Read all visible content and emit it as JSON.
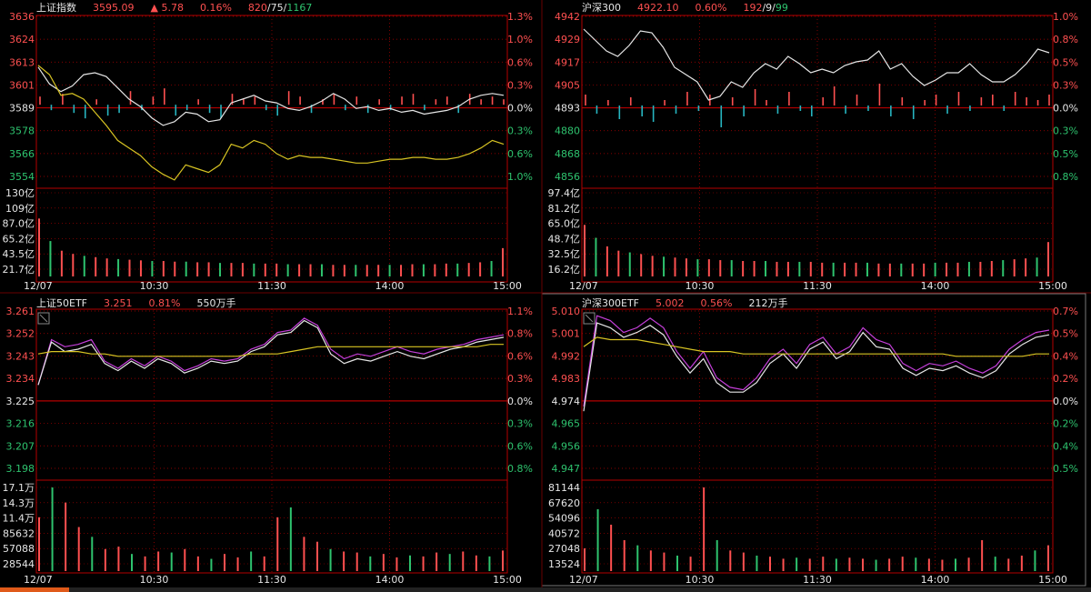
{
  "colors": {
    "up": "#ff5050",
    "down": "#2ec36e",
    "cyan": "#27b5c0",
    "white": "#e6e6e6",
    "yellow": "#d8c423",
    "purple": "#c43fd9",
    "grid": "#b40000",
    "label": "#bbbbbb"
  },
  "time_labels": [
    "12/07",
    "10:30",
    "11:30",
    "14:00",
    "15:00"
  ],
  "panels": [
    {
      "id": "sh-index",
      "header": [
        {
          "text": "上证指数",
          "color": "#e6e6e6"
        },
        {
          "text": "3595.09",
          "color": "#ff5050"
        },
        {
          "text": "▲ 5.78",
          "color": "#ff5050"
        },
        {
          "text": "0.16%",
          "color": "#ff5050"
        },
        {
          "text": "820",
          "color": "#ff5050"
        },
        {
          "text": "/75/",
          "color": "#e6e6e6"
        },
        {
          "text": "1167",
          "color": "#2ec36e"
        }
      ],
      "chart_data": {
        "type": "line",
        "base": 3589,
        "ylim": [
          3547,
          3636
        ],
        "price_ticks": [
          "3636",
          "3624",
          "3613",
          "3601",
          "3589",
          "3578",
          "3566",
          "3554"
        ],
        "pct_ticks": [
          "1.3%",
          "1.0%",
          "0.6%",
          "0.3%",
          "0.0%",
          "0.3%",
          "0.6%",
          "1.0%"
        ],
        "volume_ticks": [
          "130亿",
          "109亿",
          "87.0亿",
          "65.2亿",
          "43.5亿",
          "21.7亿"
        ],
        "volume_ylim": [
          0,
          130
        ],
        "series": [
          {
            "color": "#e6e6e6",
            "values": [
              3609,
              3600,
              3596,
              3599,
              3605,
              3606,
              3604,
              3598,
              3592,
              3588,
              3582,
              3578,
              3580,
              3585,
              3584,
              3580,
              3581,
              3590,
              3592,
              3594,
              3591,
              3590,
              3587,
              3586,
              3588,
              3591,
              3595,
              3592,
              3587,
              3588,
              3586,
              3587,
              3585,
              3586,
              3584,
              3585,
              3586,
              3588,
              3592,
              3594,
              3595,
              3594
            ]
          },
          {
            "color": "#d8c423",
            "values": [
              3610,
              3605,
              3594,
              3595,
              3592,
              3585,
              3578,
              3570,
              3566,
              3562,
              3556,
              3552,
              3549,
              3557,
              3555,
              3553,
              3557,
              3568,
              3566,
              3570,
              3568,
              3563,
              3560,
              3562,
              3561,
              3561,
              3560,
              3559,
              3558,
              3558,
              3559,
              3560,
              3560,
              3561,
              3561,
              3560,
              3560,
              3561,
              3563,
              3566,
              3570,
              3568
            ]
          }
        ],
        "ratio_bars": [
          3,
          -2,
          4,
          -3,
          -5,
          2,
          -4,
          -3,
          5,
          -2,
          3,
          6,
          -4,
          -2,
          2,
          -3,
          -5,
          4,
          2,
          3,
          -2,
          -4,
          5,
          3,
          -3,
          2,
          4,
          -2,
          3,
          -3,
          2,
          -2,
          3,
          4,
          -2,
          2,
          3,
          -3,
          4,
          2,
          3,
          2
        ],
        "volumes": [
          90,
          55,
          40,
          35,
          32,
          30,
          28,
          27,
          26,
          25,
          24,
          24,
          23,
          23,
          22,
          22,
          21,
          21,
          21,
          20,
          20,
          20,
          19,
          19,
          19,
          19,
          18,
          18,
          18,
          18,
          18,
          18,
          18,
          19,
          19,
          19,
          20,
          20,
          21,
          22,
          24,
          44
        ]
      }
    },
    {
      "id": "hs300",
      "header": [
        {
          "text": "沪深300",
          "color": "#e6e6e6"
        },
        {
          "text": "4922.10",
          "color": "#ff5050"
        },
        {
          "text": "0.60%",
          "color": "#ff5050"
        },
        {
          "text": "192",
          "color": "#ff5050"
        },
        {
          "text": "/9/",
          "color": "#e6e6e6"
        },
        {
          "text": "99",
          "color": "#2ec36e"
        }
      ],
      "chart_data": {
        "type": "line",
        "base": 4893,
        "ylim": [
          4850,
          4942
        ],
        "price_ticks": [
          "4942",
          "4929",
          "4917",
          "4905",
          "4893",
          "4880",
          "4868",
          "4856"
        ],
        "pct_ticks": [
          "1.0%",
          "0.8%",
          "0.5%",
          "0.3%",
          "0.0%",
          "0.3%",
          "0.5%",
          "0.8%"
        ],
        "volume_ticks": [
          "97.4亿",
          "81.2亿",
          "65.0亿",
          "48.7亿",
          "32.5亿",
          "16.2亿"
        ],
        "volume_ylim": [
          0,
          97.4
        ],
        "series": [
          {
            "color": "#e6e6e6",
            "values": [
              4935,
              4929,
              4923,
              4920,
              4926,
              4934,
              4933,
              4925,
              4914,
              4910,
              4906,
              4896,
              4898,
              4906,
              4903,
              4911,
              4916,
              4913,
              4920,
              4916,
              4911,
              4913,
              4911,
              4915,
              4917,
              4918,
              4923,
              4913,
              4916,
              4909,
              4904,
              4907,
              4911,
              4911,
              4916,
              4910,
              4906,
              4906,
              4910,
              4916,
              4924,
              4922
            ]
          }
        ],
        "ratio_bars": [
          4,
          -3,
          2,
          -5,
          3,
          -4,
          -6,
          2,
          -3,
          5,
          -2,
          4,
          -8,
          3,
          -4,
          6,
          2,
          -3,
          5,
          -2,
          -4,
          3,
          7,
          -3,
          4,
          -2,
          8,
          -4,
          3,
          -5,
          2,
          4,
          -3,
          5,
          -2,
          3,
          4,
          -2,
          5,
          3,
          2,
          4
        ],
        "volumes": [
          60,
          45,
          35,
          30,
          28,
          26,
          24,
          23,
          22,
          21,
          20,
          20,
          19,
          19,
          18,
          18,
          18,
          17,
          17,
          17,
          17,
          16,
          16,
          16,
          16,
          16,
          15,
          15,
          15,
          15,
          15,
          16,
          16,
          16,
          17,
          17,
          18,
          19,
          20,
          21,
          22,
          40
        ]
      }
    },
    {
      "id": "sh50etf",
      "header": [
        {
          "text": "上证50ETF",
          "color": "#e6e6e6"
        },
        {
          "text": "3.251",
          "color": "#ff5050"
        },
        {
          "text": "0.81%",
          "color": "#ff5050"
        },
        {
          "text": "550万手",
          "color": "#e6e6e6"
        }
      ],
      "chart_data": {
        "type": "line",
        "base": 3.225,
        "ylim": [
          3.192,
          3.261
        ],
        "price_ticks": [
          "3.261",
          "3.252",
          "3.243",
          "3.234",
          "3.225",
          "3.216",
          "3.207",
          "3.198"
        ],
        "pct_ticks": [
          "1.1%",
          "0.8%",
          "0.6%",
          "0.3%",
          "0.0%",
          "0.3%",
          "0.6%",
          "0.8%"
        ],
        "volume_ticks": [
          "17.1万",
          "14.3万",
          "11.4万",
          "85632",
          "57088",
          "28544"
        ],
        "volume_ylim": [
          0,
          171000
        ],
        "series": [
          {
            "color": "#c43fd9",
            "values": [
              3.23,
              3.249,
              3.246,
              3.247,
              3.249,
              3.24,
              3.237,
              3.241,
              3.238,
              3.242,
              3.24,
              3.236,
              3.238,
              3.241,
              3.24,
              3.241,
              3.245,
              3.247,
              3.252,
              3.253,
              3.258,
              3.255,
              3.245,
              3.241,
              3.243,
              3.242,
              3.244,
              3.246,
              3.244,
              3.243,
              3.245,
              3.246,
              3.247,
              3.249,
              3.25,
              3.251
            ]
          },
          {
            "color": "#e6e6e6",
            "values": [
              3.23,
              3.248,
              3.244,
              3.245,
              3.247,
              3.239,
              3.236,
              3.24,
              3.237,
              3.241,
              3.239,
              3.235,
              3.237,
              3.24,
              3.239,
              3.24,
              3.244,
              3.246,
              3.251,
              3.252,
              3.257,
              3.254,
              3.243,
              3.239,
              3.241,
              3.24,
              3.242,
              3.244,
              3.242,
              3.241,
              3.243,
              3.245,
              3.246,
              3.248,
              3.249,
              3.25
            ]
          },
          {
            "color": "#d8c423",
            "values": [
              3.243,
              3.244,
              3.244,
              3.244,
              3.243,
              3.243,
              3.242,
              3.242,
              3.242,
              3.242,
              3.242,
              3.242,
              3.242,
              3.242,
              3.242,
              3.242,
              3.243,
              3.243,
              3.243,
              3.244,
              3.245,
              3.246,
              3.246,
              3.246,
              3.246,
              3.246,
              3.246,
              3.246,
              3.246,
              3.246,
              3.246,
              3.246,
              3.246,
              3.246,
              3.247,
              3.247
            ]
          }
        ],
        "volumes": [
          110000,
          171000,
          140000,
          90000,
          70000,
          45000,
          50000,
          35000,
          30000,
          40000,
          38000,
          45000,
          30000,
          25000,
          35000,
          28000,
          40000,
          30000,
          110000,
          130000,
          70000,
          60000,
          45000,
          40000,
          38000,
          30000,
          35000,
          28000,
          32000,
          30000,
          38000,
          35000,
          40000,
          32000,
          30000,
          42000
        ]
      }
    },
    {
      "id": "hs300etf",
      "header": [
        {
          "text": "沪深300ETF",
          "color": "#e6e6e6"
        },
        {
          "text": "5.002",
          "color": "#ff5050"
        },
        {
          "text": "0.56%",
          "color": "#ff5050"
        },
        {
          "text": "212万手",
          "color": "#e6e6e6"
        }
      ],
      "chart_data": {
        "type": "line",
        "base": 4.974,
        "ylim": [
          4.941,
          5.01
        ],
        "price_ticks": [
          "5.010",
          "5.001",
          "4.992",
          "4.983",
          "4.974",
          "4.965",
          "4.956",
          "4.947"
        ],
        "pct_ticks": [
          "0.7%",
          "0.5%",
          "0.4%",
          "0.2%",
          "0.0%",
          "0.2%",
          "0.4%",
          "0.5%"
        ],
        "volume_ticks": [
          "81144",
          "67620",
          "54096",
          "40572",
          "27048",
          "13524"
        ],
        "volume_ylim": [
          0,
          81144
        ],
        "series": [
          {
            "color": "#c43fd9",
            "values": [
              4.97,
              5.008,
              5.006,
              5.001,
              5.003,
              5.007,
              5.003,
              4.993,
              4.986,
              4.993,
              4.982,
              4.978,
              4.977,
              4.982,
              4.99,
              4.994,
              4.988,
              4.996,
              4.999,
              4.992,
              4.995,
              5.003,
              4.998,
              4.996,
              4.988,
              4.985,
              4.988,
              4.987,
              4.989,
              4.986,
              4.984,
              4.987,
              4.994,
              4.998,
              5.001,
              5.002
            ]
          },
          {
            "color": "#e6e6e6",
            "values": [
              4.968,
              5.005,
              5.003,
              4.999,
              5.001,
              5.004,
              5.0,
              4.991,
              4.984,
              4.99,
              4.98,
              4.976,
              4.976,
              4.98,
              4.988,
              4.992,
              4.986,
              4.994,
              4.997,
              4.99,
              4.993,
              5.001,
              4.995,
              4.994,
              4.986,
              4.983,
              4.986,
              4.985,
              4.987,
              4.984,
              4.982,
              4.985,
              4.992,
              4.996,
              4.999,
              5.0
            ]
          },
          {
            "color": "#d8c423",
            "values": [
              4.995,
              4.999,
              4.998,
              4.998,
              4.998,
              4.997,
              4.996,
              4.995,
              4.994,
              4.993,
              4.993,
              4.993,
              4.992,
              4.992,
              4.992,
              4.992,
              4.992,
              4.992,
              4.992,
              4.992,
              4.992,
              4.992,
              4.992,
              4.992,
              4.992,
              4.992,
              4.992,
              4.992,
              4.991,
              4.991,
              4.991,
              4.991,
              4.991,
              4.991,
              4.992,
              4.992
            ]
          }
        ],
        "volumes": [
          22000,
          60000,
          45000,
          30000,
          25000,
          20000,
          18000,
          15000,
          14000,
          81144,
          30000,
          20000,
          18000,
          15000,
          14000,
          12000,
          13000,
          12000,
          14000,
          12000,
          13000,
          12000,
          11000,
          12000,
          14000,
          13000,
          12000,
          11000,
          12000,
          13000,
          30000,
          14000,
          12000,
          15000,
          20000,
          25000
        ]
      }
    }
  ]
}
